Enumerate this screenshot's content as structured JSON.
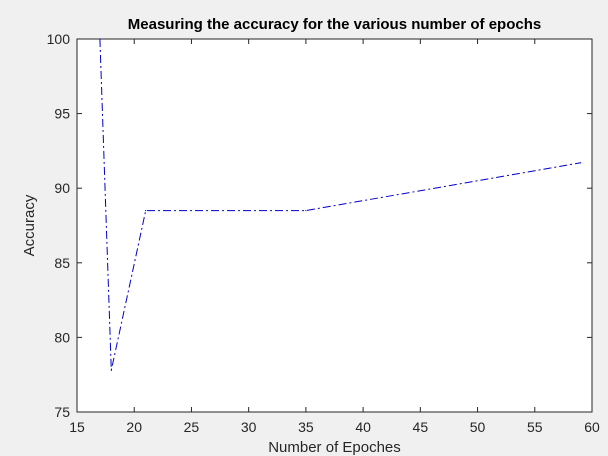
{
  "chart_data": {
    "type": "line",
    "title": "Measuring the accuracy for the various number of epochs",
    "xlabel": "Number of Epoches",
    "ylabel": "Accuracy",
    "xlim": [
      15,
      60
    ],
    "ylim": [
      75,
      100
    ],
    "xticks": [
      "15",
      "20",
      "25",
      "30",
      "35",
      "40",
      "45",
      "50",
      "55",
      "60"
    ],
    "yticks": [
      "75",
      "80",
      "85",
      "90",
      "95",
      "100"
    ],
    "grid": false,
    "series": [
      {
        "x": [
          17,
          18,
          21,
          35,
          59
        ],
        "y": [
          100,
          77.8,
          88.5,
          88.5,
          91.7
        ],
        "color": "#0000cc",
        "line_style": "dash-dot"
      }
    ]
  }
}
